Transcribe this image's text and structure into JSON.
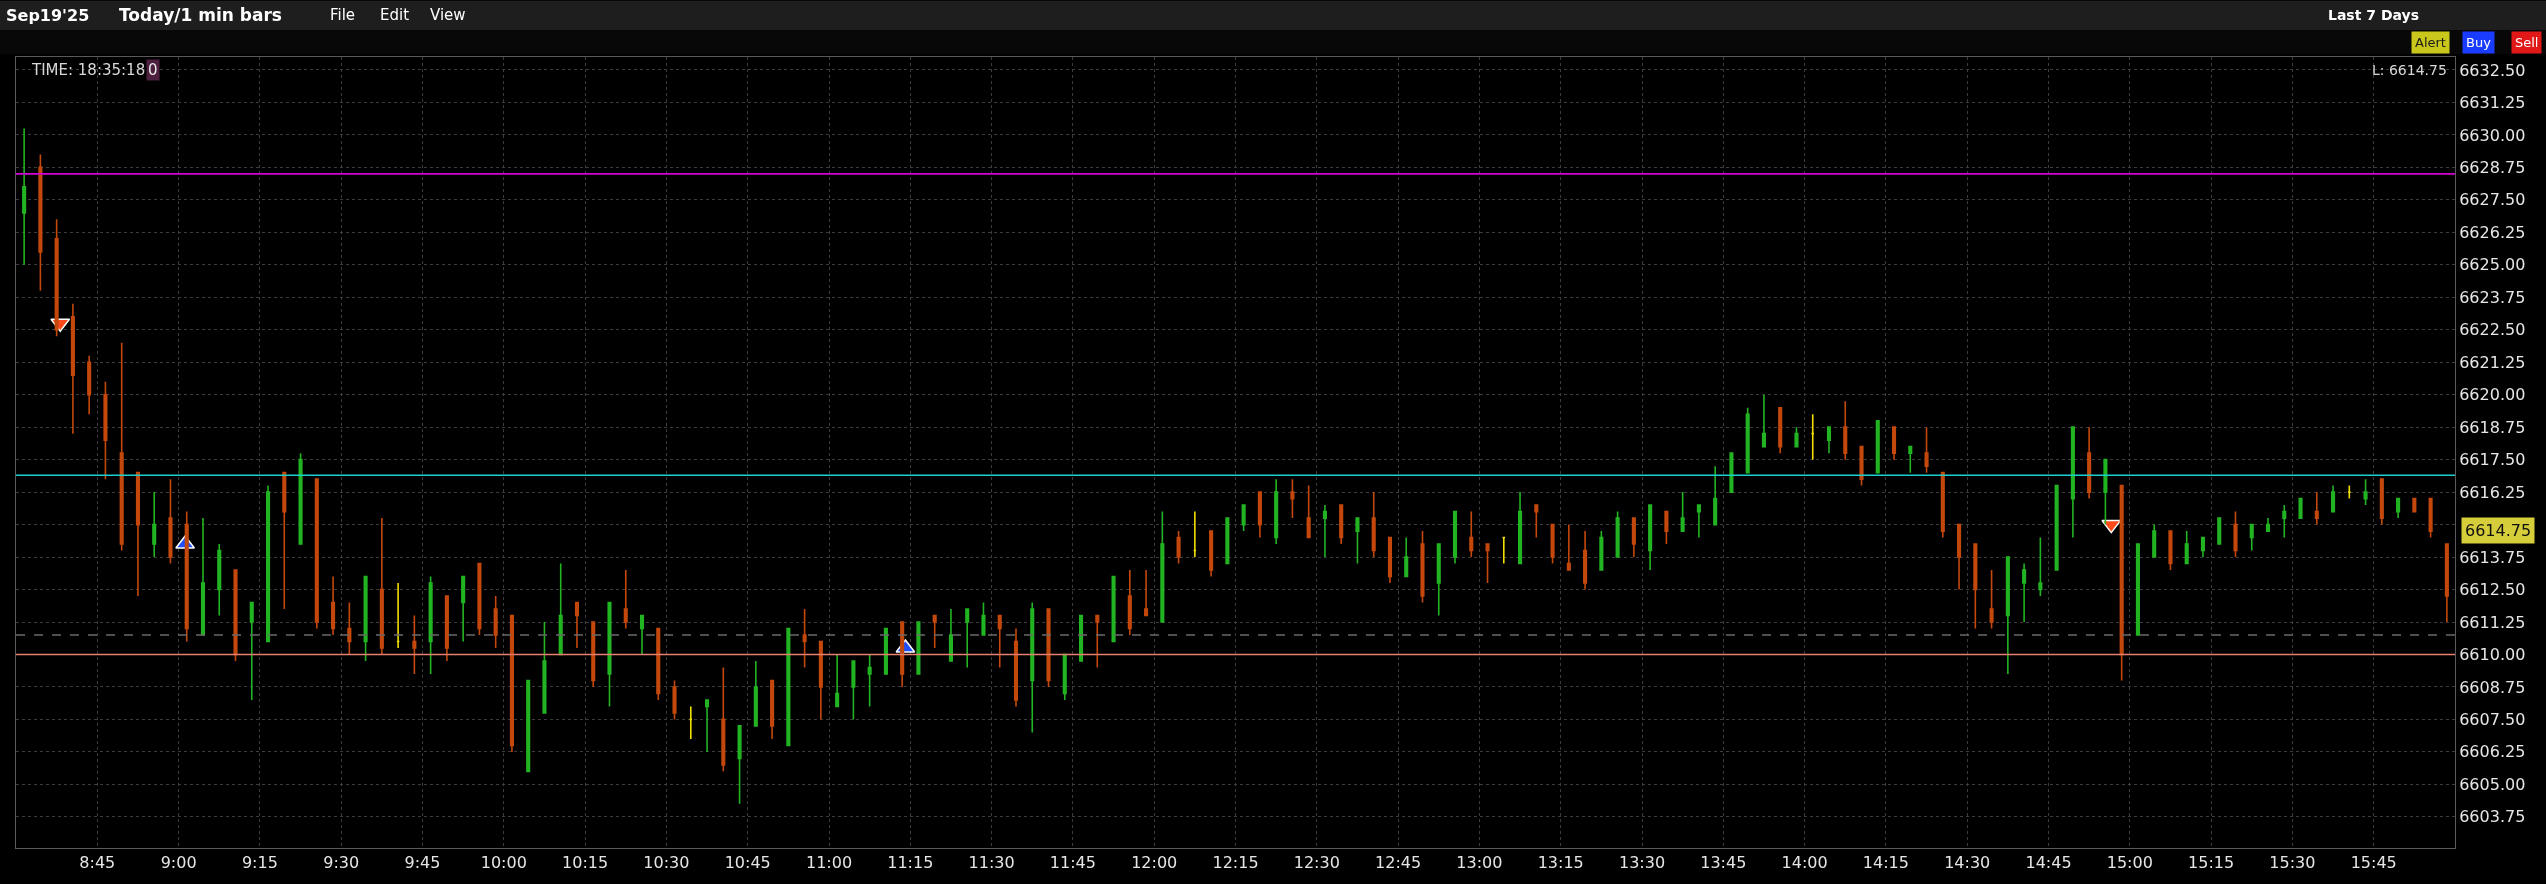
{
  "chart_data": {
    "type": "candlestick",
    "title": "Sep19'25",
    "subtitle": "Today/1 min bars",
    "annotations": [
      "File",
      "Edit",
      "View",
      "Last 7 Days",
      "Alert",
      "Buy",
      "Sell",
      "TIME: 18:35:18",
      "0",
      "L: 6614.75",
      "6614.75"
    ],
    "x": [
      8.525,
      8.575,
      8.625,
      8.675,
      8.725,
      8.775,
      8.825,
      8.875,
      8.925,
      8.975,
      9.025,
      9.075,
      9.125,
      9.175,
      9.225,
      9.275,
      9.325,
      9.375,
      9.425,
      9.475,
      9.525,
      9.575,
      9.625,
      9.675,
      9.725,
      9.775,
      9.825,
      9.875,
      9.925,
      9.975,
      10.025,
      10.075,
      10.125,
      10.175,
      10.225,
      10.275,
      10.325,
      10.375,
      10.425,
      10.475,
      10.525,
      10.575,
      10.625,
      10.675,
      10.725,
      10.775,
      10.825,
      10.875,
      10.925,
      10.975,
      11.025,
      11.075,
      11.125,
      11.175,
      11.225,
      11.275,
      11.325,
      11.375,
      11.425,
      11.475,
      11.525,
      11.575,
      11.625,
      11.675,
      11.725,
      11.775,
      11.825,
      11.875,
      11.925,
      11.975,
      12.025,
      12.075,
      12.125,
      12.175,
      12.225,
      12.275,
      12.325,
      12.375,
      12.425,
      12.475,
      12.525,
      12.575,
      12.625,
      12.675,
      12.725,
      12.775,
      12.825,
      12.875,
      12.925,
      12.975,
      13.025,
      13.075,
      13.125,
      13.175,
      13.225,
      13.275,
      13.325,
      13.375,
      13.425,
      13.475,
      13.525,
      13.575,
      13.625,
      13.675,
      13.725,
      13.775,
      13.825,
      13.875,
      13.925,
      13.975,
      14.025,
      14.075,
      14.125,
      14.175,
      14.225,
      14.275,
      14.325,
      14.375,
      14.425,
      14.475,
      14.525,
      14.575,
      14.625,
      14.675,
      14.725,
      14.775,
      14.825,
      14.875,
      14.925,
      14.975,
      15.025,
      15.075,
      15.125,
      15.175,
      15.225,
      15.275,
      15.325,
      15.375,
      15.425,
      15.475,
      15.525,
      15.575,
      15.625,
      15.675,
      15.725,
      15.775,
      15.825,
      15.875,
      15.925,
      15.975
    ],
    "ohlc": [
      [
        6627.0,
        6630.25,
        6625.0,
        6628.0
      ],
      [
        6628.75,
        6629.25,
        6624.0,
        6625.5
      ],
      [
        6626.0,
        6626.75,
        6622.25,
        6622.5
      ],
      [
        6623.0,
        6623.5,
        6618.5,
        6620.75
      ],
      [
        6621.25,
        6621.5,
        6619.25,
        6620.0
      ],
      [
        6620.0,
        6620.5,
        6616.75,
        6618.25
      ],
      [
        6617.75,
        6622.0,
        6614.0,
        6614.25
      ],
      [
        6617.0,
        6617.0,
        6612.25,
        6615.0
      ],
      [
        6614.25,
        6616.25,
        6613.75,
        6615.0
      ],
      [
        6615.25,
        6616.75,
        6613.5,
        6613.75
      ],
      [
        6615.0,
        6615.5,
        6610.5,
        6611.0
      ],
      [
        6610.75,
        6615.25,
        6610.75,
        6612.75
      ],
      [
        6612.5,
        6614.25,
        6611.5,
        6614.0
      ],
      [
        6613.25,
        6613.25,
        6609.75,
        6610.0
      ],
      [
        6611.25,
        6612.0,
        6608.25,
        6612.0
      ],
      [
        6610.5,
        6616.5,
        6610.5,
        6616.25
      ],
      [
        6617.0,
        6617.0,
        6611.75,
        6615.5
      ],
      [
        6614.25,
        6617.75,
        6614.25,
        6617.5
      ],
      [
        6616.75,
        6616.75,
        6611.0,
        6611.25
      ],
      [
        6612.0,
        6613.0,
        6610.75,
        6611.0
      ],
      [
        6611.0,
        6612.0,
        6610.0,
        6610.5
      ],
      [
        6610.5,
        6613.0,
        6609.75,
        6613.0
      ],
      [
        6612.5,
        6615.25,
        6610.0,
        6610.25
      ],
      [
        6610.5,
        6612.75,
        6610.25,
        6610.5
      ],
      [
        6610.5,
        6611.5,
        6609.25,
        6610.25
      ],
      [
        6610.5,
        6613.0,
        6609.25,
        6612.75
      ],
      [
        6612.25,
        6612.25,
        6609.75,
        6610.25
      ],
      [
        6612.0,
        6613.0,
        6610.5,
        6613.0
      ],
      [
        6613.5,
        6613.5,
        6610.75,
        6611.0
      ],
      [
        6611.75,
        6612.25,
        6610.25,
        6610.75
      ],
      [
        6611.5,
        6611.5,
        6606.25,
        6606.5
      ],
      [
        6605.5,
        6609.0,
        6605.5,
        6609.0
      ],
      [
        6607.75,
        6611.25,
        6607.75,
        6609.75
      ],
      [
        6610.0,
        6613.5,
        6610.0,
        6611.5
      ],
      [
        6612.0,
        6612.0,
        6610.25,
        6611.5
      ],
      [
        6611.25,
        6611.25,
        6608.75,
        6609.0
      ],
      [
        6609.25,
        6612.0,
        6608.0,
        6612.0
      ],
      [
        6611.75,
        6613.25,
        6611.0,
        6611.25
      ],
      [
        6611.0,
        6611.5,
        6610.0,
        6611.5
      ],
      [
        6611.0,
        6611.0,
        6608.25,
        6608.5
      ],
      [
        6608.75,
        6609.0,
        6607.5,
        6607.75
      ],
      [
        6607.5,
        6608.0,
        6606.75,
        6607.5
      ],
      [
        6608.0,
        6608.25,
        6606.25,
        6608.25
      ],
      [
        6607.5,
        6609.5,
        6605.5,
        6605.75
      ],
      [
        6606.0,
        6607.25,
        6604.25,
        6607.25
      ],
      [
        6607.25,
        6609.75,
        6607.25,
        6608.75
      ],
      [
        6609.0,
        6609.0,
        6606.75,
        6607.25
      ],
      [
        6606.5,
        6611.0,
        6606.5,
        6611.0
      ],
      [
        6610.75,
        6611.75,
        6609.5,
        6610.5
      ],
      [
        6610.5,
        6610.5,
        6607.5,
        6608.75
      ],
      [
        6608.0,
        6610.0,
        6608.0,
        6608.5
      ],
      [
        6608.75,
        6609.75,
        6607.5,
        6609.75
      ],
      [
        6609.25,
        6610.0,
        6608.0,
        6609.5
      ],
      [
        6609.25,
        6611.0,
        6609.25,
        6611.0
      ],
      [
        6611.25,
        6611.25,
        6608.75,
        6609.25
      ],
      [
        6609.25,
        6611.25,
        6609.25,
        6611.25
      ],
      [
        6611.5,
        6611.5,
        6610.25,
        6611.25
      ],
      [
        6609.75,
        6611.75,
        6609.75,
        6610.75
      ],
      [
        6611.25,
        6611.75,
        6609.5,
        6611.75
      ],
      [
        6610.75,
        6612.0,
        6610.75,
        6611.5
      ],
      [
        6611.5,
        6611.5,
        6609.5,
        6611.0
      ],
      [
        6610.5,
        6611.0,
        6608.0,
        6608.25
      ],
      [
        6609.0,
        6612.0,
        6607.0,
        6611.75
      ],
      [
        6611.75,
        6611.75,
        6608.75,
        6609.0
      ],
      [
        6608.5,
        6610.0,
        6608.25,
        6610.0
      ],
      [
        6609.75,
        6611.5,
        6609.75,
        6611.5
      ],
      [
        6611.5,
        6611.5,
        6609.5,
        6611.25
      ],
      [
        6610.5,
        6613.0,
        6610.5,
        6613.0
      ],
      [
        6612.25,
        6613.25,
        6610.75,
        6611.0
      ],
      [
        6611.75,
        6613.25,
        6611.5,
        6611.5
      ],
      [
        6611.25,
        6615.5,
        6611.25,
        6614.25
      ],
      [
        6614.5,
        6614.75,
        6613.5,
        6613.75
      ],
      [
        6614.0,
        6615.5,
        6613.75,
        6614.0
      ],
      [
        6614.75,
        6614.75,
        6613.0,
        6613.25
      ],
      [
        6613.5,
        6615.25,
        6613.5,
        6615.25
      ],
      [
        6615.0,
        6615.75,
        6614.75,
        6615.75
      ],
      [
        6616.25,
        6616.25,
        6614.5,
        6615.0
      ],
      [
        6614.5,
        6616.75,
        6614.25,
        6616.25
      ],
      [
        6616.25,
        6616.75,
        6615.25,
        6616.0
      ],
      [
        6615.25,
        6616.5,
        6614.5,
        6614.5
      ],
      [
        6615.25,
        6615.75,
        6613.75,
        6615.5
      ],
      [
        6615.75,
        6615.75,
        6614.25,
        6614.5
      ],
      [
        6614.75,
        6615.25,
        6613.5,
        6615.25
      ],
      [
        6615.25,
        6616.25,
        6613.75,
        6614.0
      ],
      [
        6614.5,
        6614.5,
        6612.75,
        6613.0
      ],
      [
        6613.0,
        6614.5,
        6613.0,
        6613.75
      ],
      [
        6614.25,
        6614.75,
        6612.0,
        6612.25
      ],
      [
        6612.75,
        6614.25,
        6611.5,
        6614.25
      ],
      [
        6613.75,
        6615.5,
        6613.5,
        6615.5
      ],
      [
        6614.5,
        6615.5,
        6613.75,
        6614.0
      ],
      [
        6614.25,
        6614.25,
        6612.75,
        6614.0
      ],
      [
        6614.5,
        6614.5,
        6613.5,
        6614.5
      ],
      [
        6613.5,
        6616.25,
        6613.5,
        6615.5
      ],
      [
        6615.75,
        6615.75,
        6614.5,
        6615.5
      ],
      [
        6615.0,
        6615.0,
        6613.5,
        6613.75
      ],
      [
        6613.5,
        6615.0,
        6613.25,
        6613.25
      ],
      [
        6614.0,
        6614.75,
        6612.5,
        6612.75
      ],
      [
        6613.25,
        6614.75,
        6613.25,
        6614.5
      ],
      [
        6613.75,
        6615.5,
        6613.75,
        6615.25
      ],
      [
        6615.25,
        6615.25,
        6613.75,
        6614.25
      ],
      [
        6614.0,
        6615.75,
        6613.25,
        6615.75
      ],
      [
        6615.5,
        6615.5,
        6614.25,
        6614.75
      ],
      [
        6614.75,
        6616.25,
        6614.75,
        6615.25
      ],
      [
        6615.5,
        6615.75,
        6614.5,
        6615.75
      ],
      [
        6615.0,
        6617.25,
        6615.0,
        6616.0
      ],
      [
        6616.25,
        6617.75,
        6616.25,
        6617.75
      ],
      [
        6617.0,
        6619.5,
        6617.0,
        6619.25
      ],
      [
        6618.0,
        6620.0,
        6618.0,
        6618.5
      ],
      [
        6619.5,
        6619.5,
        6617.75,
        6618.0
      ],
      [
        6618.0,
        6618.75,
        6618.0,
        6618.5
      ],
      [
        6618.5,
        6619.25,
        6617.5,
        6618.5
      ],
      [
        6618.25,
        6618.75,
        6617.75,
        6618.75
      ],
      [
        6618.75,
        6619.75,
        6617.5,
        6617.75
      ],
      [
        6618.0,
        6618.0,
        6616.5,
        6616.75
      ],
      [
        6617.0,
        6619.0,
        6617.0,
        6619.0
      ],
      [
        6618.75,
        6618.75,
        6617.5,
        6617.75
      ],
      [
        6617.75,
        6618.0,
        6617.0,
        6618.0
      ],
      [
        6617.75,
        6618.75,
        6617.0,
        6617.25
      ],
      [
        6617.0,
        6617.0,
        6614.5,
        6614.75
      ],
      [
        6615.0,
        6615.0,
        6612.5,
        6613.75
      ],
      [
        6614.25,
        6614.25,
        6611.0,
        6612.5
      ],
      [
        6611.75,
        6613.25,
        6611.0,
        6611.25
      ],
      [
        6611.5,
        6613.75,
        6609.25,
        6613.75
      ],
      [
        6612.75,
        6613.5,
        6611.25,
        6613.25
      ],
      [
        6612.5,
        6614.5,
        6612.25,
        6612.75
      ],
      [
        6613.25,
        6616.5,
        6613.25,
        6616.5
      ],
      [
        6616.0,
        6618.75,
        6614.5,
        6618.75
      ],
      [
        6617.75,
        6618.75,
        6616.0,
        6616.25
      ],
      [
        6616.25,
        6617.5,
        6615.0,
        6617.5
      ],
      [
        6616.5,
        6616.5,
        6609.0,
        6610.0
      ],
      [
        6610.75,
        6614.25,
        6610.75,
        6614.25
      ],
      [
        6613.75,
        6615.0,
        6613.75,
        6614.75
      ],
      [
        6614.75,
        6614.75,
        6613.25,
        6613.5
      ],
      [
        6613.5,
        6614.75,
        6613.5,
        6614.25
      ],
      [
        6614.0,
        6614.5,
        6613.75,
        6614.5
      ],
      [
        6614.25,
        6615.25,
        6614.25,
        6615.25
      ],
      [
        6615.0,
        6615.5,
        6613.75,
        6614.0
      ],
      [
        6614.5,
        6615.0,
        6614.0,
        6615.0
      ],
      [
        6614.75,
        6615.25,
        6614.75,
        6615.0
      ],
      [
        6615.25,
        6615.75,
        6614.5,
        6615.5
      ],
      [
        6615.25,
        6616.0,
        6615.25,
        6616.0
      ],
      [
        6615.5,
        6616.25,
        6615.0,
        6615.25
      ],
      [
        6615.5,
        6616.5,
        6615.5,
        6616.25
      ],
      [
        6616.25,
        6616.5,
        6616.0,
        6616.25
      ],
      [
        6616.0,
        6616.75,
        6615.75,
        6616.25
      ],
      [
        6616.75,
        6616.75,
        6615.0,
        6615.25
      ],
      [
        6615.5,
        6616.0,
        6615.25,
        6616.0
      ],
      [
        6616.0,
        6616.0,
        6615.5,
        6615.5
      ],
      [
        6616.0,
        6616.0,
        6614.5,
        6614.75
      ],
      [
        6614.25,
        6614.25,
        6611.25,
        6612.25
      ]
    ],
    "colors": [
      "#22b422",
      "#c4480c",
      "#c4480c",
      "#c4480c",
      "#c4480c",
      "#c4480c",
      "#c4480c",
      "#c4480c",
      "#22b422",
      "#c4480c",
      "#c4480c",
      "#22b422",
      "#22b422",
      "#c4480c",
      "#22b422",
      "#22b422",
      "#c4480c",
      "#22b422",
      "#c4480c",
      "#c4480c",
      "#c4480c",
      "#22b422",
      "#c4480c",
      "#f0e000",
      "#c4480c",
      "#22b422",
      "#c4480c",
      "#22b422",
      "#c4480c",
      "#c4480c",
      "#c4480c",
      "#22b422",
      "#22b422",
      "#22b422",
      "#c4480c",
      "#c4480c",
      "#22b422",
      "#c4480c",
      "#22b422",
      "#c4480c",
      "#c4480c",
      "#f0e000",
      "#22b422",
      "#c4480c",
      "#22b422",
      "#22b422",
      "#c4480c",
      "#22b422",
      "#c4480c",
      "#c4480c",
      "#22b422",
      "#22b422",
      "#22b422",
      "#22b422",
      "#c4480c",
      "#22b422",
      "#c4480c",
      "#22b422",
      "#22b422",
      "#22b422",
      "#c4480c",
      "#c4480c",
      "#22b422",
      "#c4480c",
      "#22b422",
      "#22b422",
      "#c4480c",
      "#22b422",
      "#c4480c",
      "#c4480c",
      "#22b422",
      "#c4480c",
      "#f0e000",
      "#c4480c",
      "#22b422",
      "#22b422",
      "#c4480c",
      "#22b422",
      "#c4480c",
      "#c4480c",
      "#22b422",
      "#c4480c",
      "#22b422",
      "#c4480c",
      "#c4480c",
      "#22b422",
      "#c4480c",
      "#22b422",
      "#22b422",
      "#c4480c",
      "#c4480c",
      "#f0e000",
      "#22b422",
      "#c4480c",
      "#c4480c",
      "#c4480c",
      "#c4480c",
      "#22b422",
      "#22b422",
      "#c4480c",
      "#22b422",
      "#c4480c",
      "#22b422",
      "#22b422",
      "#22b422",
      "#22b422",
      "#22b422",
      "#22b422",
      "#c4480c",
      "#22b422",
      "#f0e000",
      "#22b422",
      "#c4480c",
      "#c4480c",
      "#22b422",
      "#c4480c",
      "#22b422",
      "#c4480c",
      "#c4480c",
      "#c4480c",
      "#c4480c",
      "#c4480c",
      "#22b422",
      "#22b422",
      "#22b422",
      "#22b422",
      "#22b422",
      "#c4480c",
      "#22b422",
      "#c4480c",
      "#22b422",
      "#22b422",
      "#c4480c",
      "#22b422",
      "#22b422",
      "#22b422",
      "#c4480c",
      "#22b422",
      "#22b422",
      "#22b422",
      "#22b422",
      "#c4480c",
      "#22b422",
      "#f0e000",
      "#22b422",
      "#c4480c",
      "#22b422",
      "#c4480c",
      "#c4480c",
      "#c4480c"
    ],
    "series": [
      {
        "type": "scatter",
        "color": "#1f4fff",
        "marker": "triangle",
        "x": [
          9.02,
          11.235
        ],
        "values": [
          6614.25,
          6610.25
        ]
      },
      {
        "type": "scatter",
        "color": "#ff4a1c",
        "marker": "triangle-down",
        "x": [
          8.636,
          14.943
        ],
        "values": [
          6622.75,
          6615.0
        ]
      }
    ],
    "ref_lines": [
      {
        "axis": "y",
        "value": 6628.5,
        "color": "#d400d4",
        "line_style": "solid"
      },
      {
        "axis": "y",
        "value": 6616.9,
        "color": "#1ccfcf",
        "line_style": "solid"
      },
      {
        "axis": "y",
        "value": 6610.75,
        "color": "#6a6a6a",
        "line_style": "dashed"
      },
      {
        "axis": "y",
        "value": 6610.0,
        "color": "#e88070",
        "line_style": "solid"
      }
    ],
    "xlim": [
      8.5,
      16.0
    ],
    "ylim": [
      6602.55,
      6633.0
    ],
    "xticks": [
      {
        "value": 8.75,
        "label": "8:45"
      },
      {
        "value": 9.0,
        "label": "9:00"
      },
      {
        "value": 9.25,
        "label": "9:15"
      },
      {
        "value": 9.5,
        "label": "9:30"
      },
      {
        "value": 9.75,
        "label": "9:45"
      },
      {
        "value": 10.0,
        "label": "10:00"
      },
      {
        "value": 10.25,
        "label": "10:15"
      },
      {
        "value": 10.5,
        "label": "10:30"
      },
      {
        "value": 10.75,
        "label": "10:45"
      },
      {
        "value": 11.0,
        "label": "11:00"
      },
      {
        "value": 11.25,
        "label": "11:15"
      },
      {
        "value": 11.5,
        "label": "11:30"
      },
      {
        "value": 11.75,
        "label": "11:45"
      },
      {
        "value": 12.0,
        "label": "12:00"
      },
      {
        "value": 12.25,
        "label": "12:15"
      },
      {
        "value": 12.5,
        "label": "12:30"
      },
      {
        "value": 12.75,
        "label": "12:45"
      },
      {
        "value": 13.0,
        "label": "13:00"
      },
      {
        "value": 13.25,
        "label": "13:15"
      },
      {
        "value": 13.5,
        "label": "13:30"
      },
      {
        "value": 13.75,
        "label": "13:45"
      },
      {
        "value": 14.0,
        "label": "14:00"
      },
      {
        "value": 14.25,
        "label": "14:15"
      },
      {
        "value": 14.5,
        "label": "14:30"
      },
      {
        "value": 14.75,
        "label": "14:45"
      },
      {
        "value": 15.0,
        "label": "15:00"
      },
      {
        "value": 15.25,
        "label": "15:15"
      },
      {
        "value": 15.5,
        "label": "15:30"
      },
      {
        "value": 15.75,
        "label": "15:45"
      }
    ],
    "yticks": [
      6603.75,
      {
        "value": 6605.0,
        "label": "6605.00"
      },
      6606.25,
      {
        "value": 6607.5,
        "label": "6607.50"
      },
      6608.75,
      {
        "value": 6610.0,
        "label": "6610.00"
      },
      6611.25,
      {
        "value": 6612.5,
        "label": "6612.50"
      },
      6613.75,
      {
        "value": 6615.0,
        "label": null
      },
      6616.25,
      {
        "value": 6617.5,
        "label": "6617.50"
      },
      6618.75,
      {
        "value": 6620.0,
        "label": "6620.00"
      },
      6621.25,
      {
        "value": 6622.5,
        "label": "6622.50"
      },
      6623.75,
      {
        "value": 6625.0,
        "label": "6625.00"
      },
      6626.25,
      {
        "value": 6627.5,
        "label": "6627.50"
      },
      6628.75,
      {
        "value": 6630.0,
        "label": "6630.00"
      },
      6631.25,
      {
        "value": 6632.5,
        "label": "6632.50"
      }
    ],
    "grid": true
  }
}
